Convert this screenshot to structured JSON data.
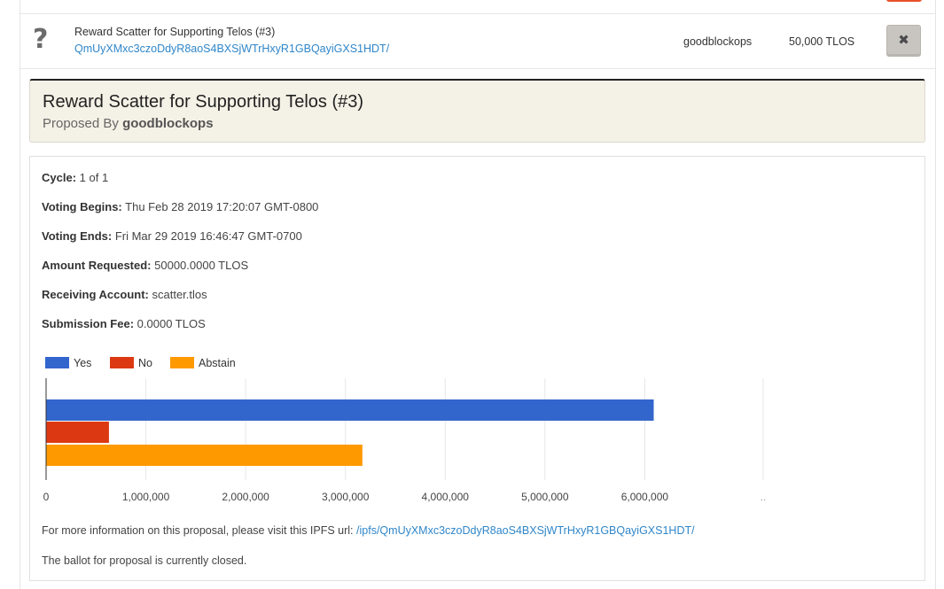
{
  "list": {
    "row": {
      "title": "Reward Scatter for Supporting Telos (#3)",
      "ipfs_hash": "QmUyXMxc3czoDdyR8aoS4BXSjWTrHxyR1GBQayiGXS1HDT/",
      "proposer": "goodblockops",
      "amount": "50,000 TLOS",
      "close_label": "✖"
    }
  },
  "detail": {
    "title": "Reward Scatter for Supporting Telos (#3)",
    "proposed_by_label": "Proposed By",
    "proposer": "goodblockops",
    "fields": [
      {
        "label": "Cycle:",
        "value": "1 of 1"
      },
      {
        "label": "Voting Begins:",
        "value": "Thu Feb 28 2019 17:20:07 GMT-0800"
      },
      {
        "label": "Voting Ends:",
        "value": "Fri Mar 29 2019 16:46:47 GMT-0700"
      },
      {
        "label": "Amount Requested:",
        "value": "50000.0000 TLOS"
      },
      {
        "label": "Receiving Account:",
        "value": "scatter.tlos"
      },
      {
        "label": "Submission Fee:",
        "value": "0.0000 TLOS"
      }
    ],
    "more_info_text": "For more information on this proposal, please visit this IPFS url:",
    "more_info_link": "/ipfs/QmUyXMxc3czoDdyR8aoS4BXSjWTrHxyR1GBQayiGXS1HDT/",
    "ballot_status": "The ballot for proposal is currently closed."
  },
  "colors": {
    "yes": "#3366cc",
    "no": "#dc3912",
    "abstain": "#ff9900",
    "link": "#2f86c9"
  },
  "chart_data": {
    "type": "bar",
    "orientation": "horizontal",
    "legend_position": "top-left",
    "grid": true,
    "series": [
      {
        "name": "Yes",
        "value": 6090000,
        "color": "#3366cc"
      },
      {
        "name": "No",
        "value": 630000,
        "color": "#dc3912"
      },
      {
        "name": "Abstain",
        "value": 3170000,
        "color": "#ff9900"
      }
    ],
    "xlim": [
      0,
      7000000
    ],
    "ticks": [
      0,
      1000000,
      2000000,
      3000000,
      4000000,
      5000000,
      6000000
    ],
    "tick_labels": [
      "0",
      "1,000,000",
      "2,000,000",
      "3,000,000",
      "4,000,000",
      "5,000,000",
      "6,000,000"
    ],
    "trailing_tick_label": ".."
  }
}
